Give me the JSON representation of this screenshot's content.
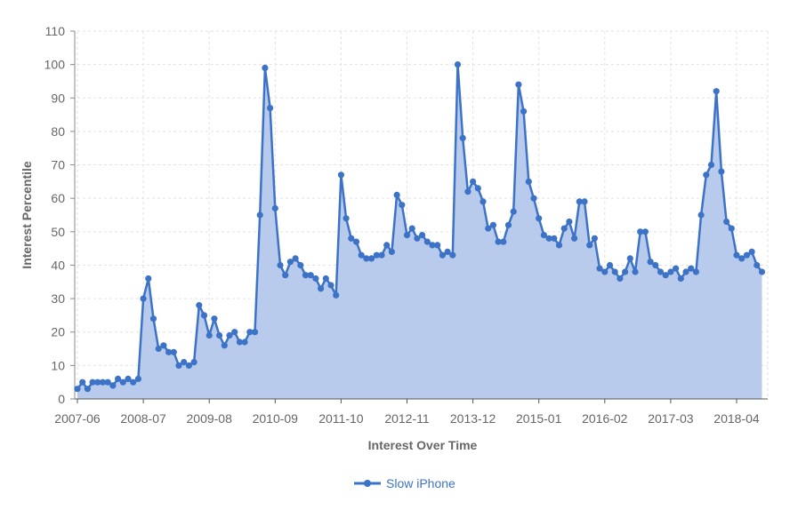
{
  "chart_data": {
    "type": "area",
    "title": "",
    "xlabel": "Interest Over Time",
    "ylabel": "Interest Percentile",
    "ylim": [
      0,
      110
    ],
    "y_ticks": [
      0,
      10,
      20,
      30,
      40,
      50,
      60,
      70,
      80,
      90,
      100,
      110
    ],
    "x_tick_labels": [
      "2007-06",
      "2008-07",
      "2009-08",
      "2010-09",
      "2011-10",
      "2012-11",
      "2013-12",
      "2015-01",
      "2016-02",
      "2017-03",
      "2018-04"
    ],
    "x_start": "2007-06",
    "x_interval": "month",
    "grid": true,
    "legend": "bottom-center",
    "series": [
      {
        "name": "Slow iPhone",
        "color": "#3d73c7",
        "fill": "#b8cbec",
        "values": [
          3,
          5,
          3,
          5,
          5,
          5,
          5,
          4,
          6,
          5,
          6,
          5,
          6,
          30,
          36,
          24,
          15,
          16,
          14,
          14,
          10,
          11,
          10,
          11,
          28,
          25,
          19,
          24,
          19,
          16,
          19,
          20,
          17,
          17,
          20,
          20,
          55,
          99,
          87,
          57,
          40,
          37,
          41,
          42,
          40,
          37,
          37,
          36,
          33,
          36,
          34,
          31,
          67,
          54,
          48,
          47,
          43,
          42,
          42,
          43,
          43,
          46,
          44,
          61,
          58,
          49,
          51,
          48,
          49,
          47,
          46,
          46,
          43,
          44,
          43,
          100,
          78,
          62,
          65,
          63,
          59,
          51,
          52,
          47,
          47,
          52,
          56,
          94,
          86,
          65,
          60,
          54,
          49,
          48,
          48,
          46,
          51,
          53,
          48,
          59,
          59,
          46,
          48,
          39,
          38,
          40,
          38,
          36,
          38,
          42,
          38,
          50,
          50,
          41,
          40,
          38,
          37,
          38,
          39,
          36,
          38,
          39,
          38,
          55,
          67,
          70,
          92,
          68,
          53,
          51,
          43,
          42,
          43,
          44,
          40,
          38
        ]
      }
    ]
  }
}
